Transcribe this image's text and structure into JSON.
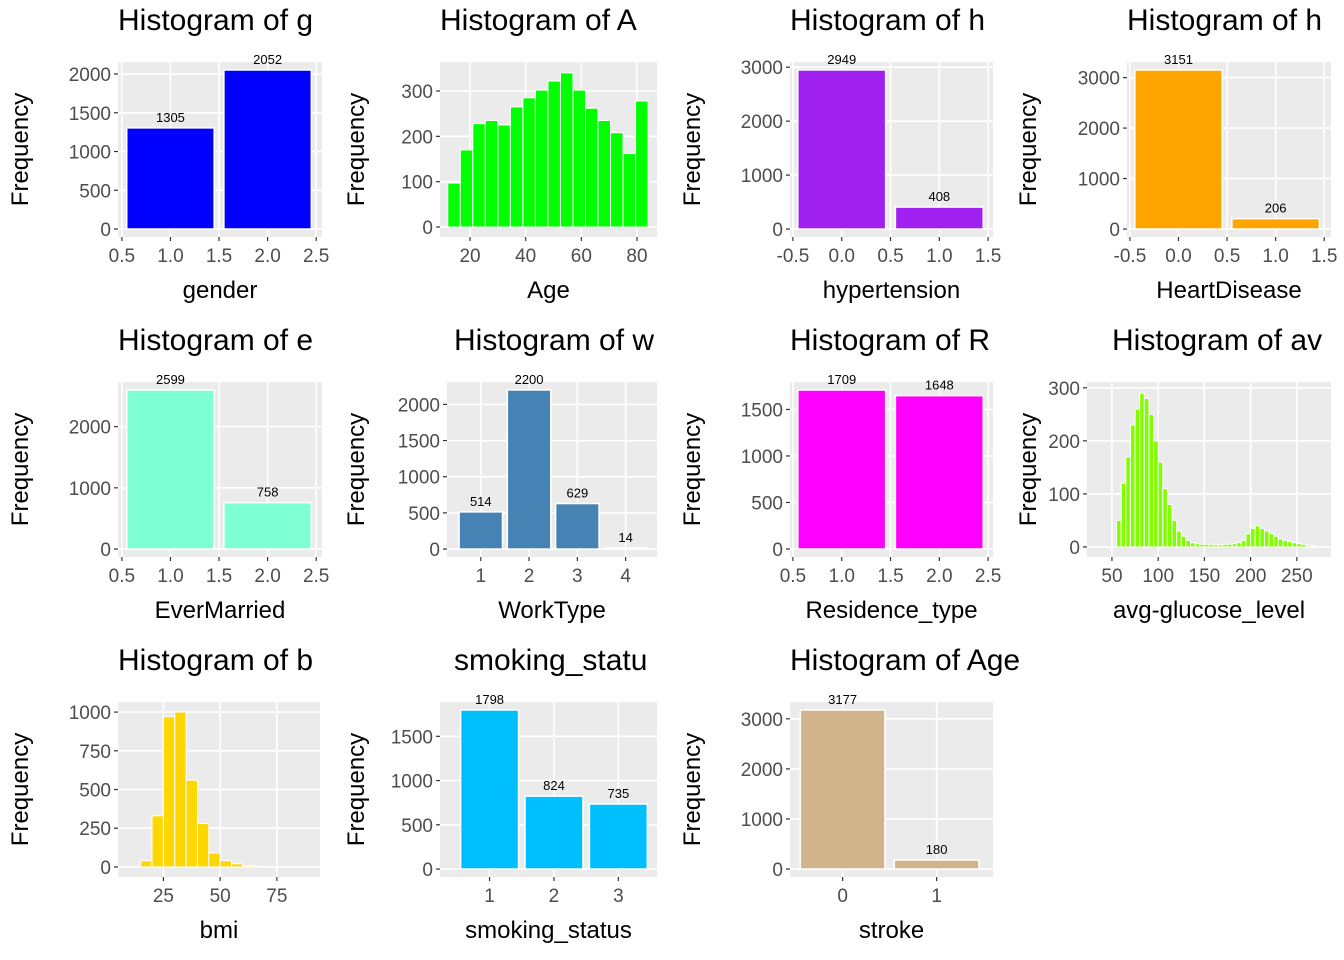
{
  "chart_data": [
    {
      "type": "bar",
      "title": "Histogram of g",
      "xlabel": "gender",
      "ylabel": "Frequency",
      "x": [
        1,
        2
      ],
      "values": [
        1305,
        2052
      ],
      "color": "#0000ff",
      "xlim": [
        0.46,
        2.56
      ],
      "xticks": [
        0.5,
        {
          "value": 1,
          "label": "1.0"
        },
        1.5,
        {
          "value": 2,
          "label": "2.0"
        },
        2.5
      ],
      "ylim": [
        -103,
        2155
      ],
      "yticks": [
        0,
        500,
        1000,
        1500,
        2000
      ]
    },
    {
      "type": "histogram",
      "title": "Histogram of A",
      "xlabel": "Age",
      "ylabel": "Frequency",
      "bins": [
        12,
        16.5,
        21,
        25.5,
        30,
        34.5,
        39,
        43.5,
        48,
        52.5,
        57,
        61.5,
        66,
        70.5,
        75,
        79.5,
        84
      ],
      "values": [
        97,
        170,
        228,
        235,
        225,
        265,
        285,
        302,
        322,
        340,
        302,
        262,
        235,
        208,
        162,
        278
      ],
      "color": "#00ff00",
      "xlim": [
        9.2,
        87.2
      ],
      "xticks": [
        20,
        40,
        60,
        80
      ],
      "ylim": [
        -22,
        364
      ],
      "yticks": [
        0,
        100,
        200,
        300
      ]
    },
    {
      "type": "bar",
      "title": "Histogram of h",
      "xlabel": "hypertension",
      "ylabel": "Frequency",
      "x": [
        0,
        1
      ],
      "values": [
        2949,
        408
      ],
      "color": "#a020f0",
      "xlim": [
        -0.53,
        1.55
      ],
      "xticks": [
        -0.5,
        {
          "value": 0,
          "label": "0.0"
        },
        0.5,
        {
          "value": 1,
          "label": "1.0"
        },
        1.5
      ],
      "ylim": [
        -147,
        3096
      ],
      "yticks": [
        0,
        1000,
        2000,
        3000
      ]
    },
    {
      "type": "bar",
      "title": "Histogram of h",
      "xlabel": "HeartDisease",
      "ylabel": "Frequency",
      "x": [
        0,
        1
      ],
      "values": [
        3151,
        206
      ],
      "color": "#ffa500",
      "xlim": [
        -0.53,
        1.57
      ],
      "xticks": [
        -0.5,
        {
          "value": 0,
          "label": "0.0"
        },
        0.5,
        {
          "value": 1,
          "label": "1.0"
        },
        1.5
      ],
      "ylim": [
        -158,
        3309
      ],
      "yticks": [
        0,
        1000,
        2000,
        3000
      ]
    },
    {
      "type": "bar",
      "title": "Histogram of e",
      "xlabel": "EverMarried",
      "ylabel": "Frequency",
      "x": [
        1,
        2
      ],
      "values": [
        2599,
        758
      ],
      "color": "#7fffd4",
      "xlim": [
        0.46,
        2.56
      ],
      "xticks": [
        0.5,
        {
          "value": 1,
          "label": "1.0"
        },
        1.5,
        {
          "value": 2,
          "label": "2.0"
        },
        2.5
      ],
      "ylim": [
        -130,
        2729
      ],
      "yticks": [
        0,
        1000,
        2000
      ]
    },
    {
      "type": "bar",
      "title": "Histogram of w",
      "xlabel": "WorkType",
      "ylabel": "Frequency",
      "x": [
        1,
        2,
        3,
        4
      ],
      "values": [
        514,
        2200,
        629,
        14
      ],
      "color": "#4682b4",
      "xlim": [
        0.3,
        4.65
      ],
      "xticks": [
        1,
        2,
        3,
        4
      ],
      "ylim": [
        -110,
        2310
      ],
      "yticks": [
        0,
        500,
        1000,
        1500,
        2000
      ]
    },
    {
      "type": "bar",
      "title": "Histogram of R",
      "xlabel": "Residence_type",
      "ylabel": "Frequency",
      "x": [
        1,
        2
      ],
      "values": [
        1709,
        1648
      ],
      "color": "#ff00ff",
      "xlim": [
        0.47,
        2.55
      ],
      "xticks": [
        0.5,
        {
          "value": 1,
          "label": "1.0"
        },
        1.5,
        {
          "value": 2,
          "label": "2.0"
        },
        2.5
      ],
      "ylim": [
        -86,
        1795
      ],
      "yticks": [
        0,
        500,
        1000,
        1500
      ]
    },
    {
      "type": "histogram",
      "title": "Histogram of av",
      "xlabel": "avg-glucose_level",
      "ylabel": "Frequency",
      "bins": [
        55,
        60,
        65,
        70,
        75,
        80,
        85,
        90,
        95,
        100,
        105,
        110,
        115,
        120,
        125,
        130,
        135,
        140,
        145,
        150,
        155,
        160,
        165,
        170,
        175,
        180,
        185,
        190,
        195,
        200,
        205,
        210,
        215,
        220,
        225,
        230,
        235,
        240,
        245,
        250,
        255,
        260,
        265,
        270
      ],
      "values": [
        50,
        120,
        170,
        230,
        260,
        290,
        280,
        250,
        200,
        160,
        110,
        80,
        50,
        30,
        20,
        12,
        8,
        6,
        5,
        5,
        5,
        4,
        4,
        5,
        5,
        6,
        8,
        12,
        25,
        35,
        40,
        35,
        30,
        25,
        20,
        15,
        12,
        10,
        8,
        6,
        5,
        3,
        2
      ],
      "color": "#7fff00",
      "xlim": [
        23,
        287
      ],
      "xticks": [
        50,
        100,
        150,
        200,
        250
      ],
      "ylim": [
        -19,
        311
      ],
      "yticks": [
        0,
        100,
        200,
        300
      ]
    },
    {
      "type": "histogram",
      "title": "Histogram of b",
      "xlabel": "bmi",
      "ylabel": "Frequency",
      "bins": [
        10,
        15,
        20,
        25,
        30,
        35,
        40,
        45,
        50,
        55,
        60,
        65,
        70,
        75,
        80,
        85,
        90,
        95
      ],
      "values": [
        2,
        40,
        330,
        970,
        1000,
        560,
        280,
        90,
        40,
        20,
        8,
        3,
        1,
        1,
        1,
        0,
        1
      ],
      "color": "#ffd700",
      "xlim": [
        5,
        94
      ],
      "xticks": [
        25,
        50,
        75
      ],
      "ylim": [
        -65,
        1065
      ],
      "yticks": [
        0,
        250,
        500,
        750,
        1000
      ]
    },
    {
      "type": "bar",
      "title": "smoking_statu",
      "xlabel": "smoking_status",
      "ylabel": "Frequency",
      "x": [
        1,
        2,
        3
      ],
      "values": [
        1798,
        824,
        735
      ],
      "color": "#00bfff",
      "xlim": [
        0.23,
        3.6
      ],
      "xticks": [
        1,
        2,
        3
      ],
      "ylim": [
        -90,
        1888
      ],
      "yticks": [
        0,
        500,
        1000,
        1500
      ]
    },
    {
      "type": "bar",
      "title": "Histogram of Age",
      "xlabel": "stroke",
      "ylabel": "Frequency",
      "x": [
        0,
        1
      ],
      "values": [
        3177,
        180
      ],
      "color": "#d2b48c",
      "xlim": [
        -0.56,
        1.6
      ],
      "xticks": [
        0,
        1
      ],
      "ylim": [
        -159,
        3336
      ],
      "yticks": [
        0,
        1000,
        2000,
        3000
      ]
    }
  ]
}
